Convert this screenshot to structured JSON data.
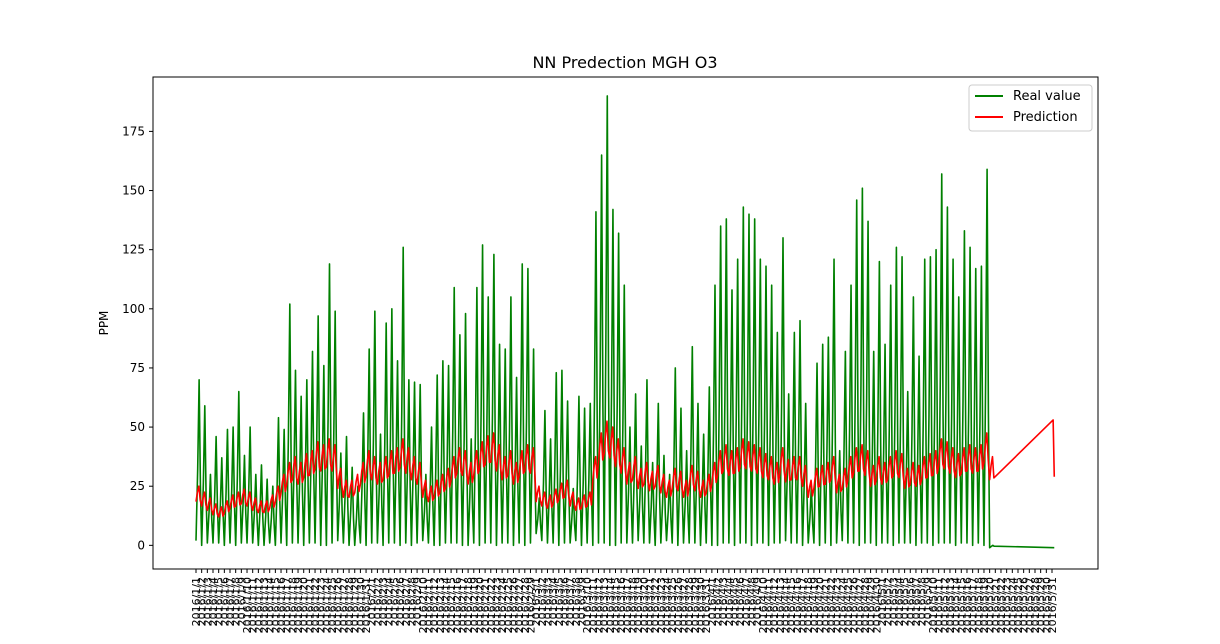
{
  "chart_data": {
    "type": "line",
    "title": "NN Predection MGH O3",
    "xlabel": "",
    "ylabel": "PPM",
    "ylim": [
      -10,
      198
    ],
    "y_ticks": [
      0,
      25,
      50,
      75,
      100,
      125,
      150,
      175
    ],
    "grid": false,
    "legend_position": "top-right",
    "x_tick_labels": [
      "2016/1/1",
      "2016/1/2",
      "2016/1/3",
      "2016/1/4",
      "2016/1/5",
      "2016/1/6",
      "2016/1/7",
      "2016/1/8",
      "2016/1/9",
      "2016/1/10",
      "2016/1/11",
      "2016/1/12",
      "2016/1/13",
      "2016/1/14",
      "2016/1/15",
      "2016/1/16",
      "2016/1/17",
      "2016/1/18",
      "2016/1/19",
      "2016/1/20",
      "2016/1/21",
      "2016/1/22",
      "2016/1/23",
      "2016/1/24",
      "2016/1/25",
      "2016/1/26",
      "2016/1/27",
      "2016/1/28",
      "2016/1/29",
      "2016/1/30",
      "2016/1/31",
      "2016/2/1",
      "2016/2/2",
      "2016/2/3",
      "2016/2/4",
      "2016/2/5",
      "2016/2/6",
      "2016/2/7",
      "2016/2/8",
      "2016/2/9",
      "2016/2/10",
      "2016/2/11",
      "2016/2/12",
      "2016/2/13",
      "2016/2/14",
      "2016/2/15",
      "2016/2/16",
      "2016/2/17",
      "2016/2/18",
      "2016/2/19",
      "2016/2/20",
      "2016/2/21",
      "2016/2/22",
      "2016/2/23",
      "2016/2/24",
      "2016/2/25",
      "2016/2/26",
      "2016/2/27",
      "2016/2/28",
      "2016/2/29",
      "2016/3/1",
      "2016/3/2",
      "2016/3/3",
      "2016/3/4",
      "2016/3/5",
      "2016/3/6",
      "2016/3/7",
      "2016/3/8",
      "2016/3/9",
      "2016/3/10",
      "2016/3/11",
      "2016/3/12",
      "2016/3/13",
      "2016/3/14",
      "2016/3/15",
      "2016/3/16",
      "2016/3/17",
      "2016/3/18",
      "2016/3/19",
      "2016/3/20",
      "2016/3/21",
      "2016/3/22",
      "2016/3/23",
      "2016/3/24",
      "2016/3/25",
      "2016/3/26",
      "2016/3/27",
      "2016/3/28",
      "2016/3/29",
      "2016/3/30",
      "2016/3/31",
      "2016/4/1",
      "2016/4/2",
      "2016/4/3",
      "2016/4/4",
      "2016/4/5",
      "2016/4/6",
      "2016/4/7",
      "2016/4/8",
      "2016/4/9",
      "2016/4/10",
      "2016/4/11",
      "2016/4/12",
      "2016/4/13",
      "2016/4/14",
      "2016/4/15",
      "2016/4/16",
      "2016/4/17",
      "2016/4/18",
      "2016/4/19",
      "2016/4/20",
      "2016/4/21",
      "2016/4/22",
      "2016/4/23",
      "2016/4/24",
      "2016/4/25",
      "2016/4/26",
      "2016/4/27",
      "2016/4/28",
      "2016/4/29",
      "2016/4/30",
      "2016/5/1",
      "2016/5/2",
      "2016/5/3",
      "2016/5/4",
      "2016/5/5",
      "2016/5/6",
      "2016/5/7",
      "2016/5/8",
      "2016/5/9",
      "2016/5/10",
      "2016/5/11",
      "2016/5/12",
      "2016/5/13",
      "2016/5/14",
      "2016/5/15",
      "2016/5/16",
      "2016/5/17",
      "2016/5/18",
      "2016/5/19",
      "2016/5/20",
      "2016/5/21",
      "2016/5/22",
      "2016/5/23",
      "2016/5/24",
      "2016/5/25",
      "2016/5/26",
      "2016/5/27",
      "2016/5/28",
      "2016/5/29",
      "2016/5/30",
      "2016/5/31"
    ],
    "daily_peaks_real": [
      70,
      59,
      30,
      46,
      37,
      49,
      50,
      65,
      38,
      50,
      30,
      34,
      28,
      25,
      54,
      49,
      102,
      74,
      63,
      70,
      82,
      97,
      76,
      119,
      99,
      39,
      46,
      33,
      25,
      56,
      83,
      99,
      47,
      94,
      100,
      78,
      126,
      70,
      69,
      68,
      30,
      50,
      72,
      78,
      76,
      109,
      89,
      98,
      45,
      109,
      127,
      105,
      123,
      85,
      83,
      105,
      71,
      119,
      117,
      83,
      20,
      57,
      45,
      73,
      74,
      61,
      24,
      63,
      58,
      60,
      141,
      165,
      190,
      142,
      132,
      110,
      50,
      64,
      42,
      70,
      35,
      60,
      38,
      30,
      75,
      58,
      40,
      84,
      60,
      47,
      67,
      110,
      135,
      138,
      108,
      121,
      143,
      140,
      138,
      121,
      118,
      110,
      90,
      130,
      64,
      90,
      95,
      60,
      25,
      77,
      85,
      88,
      121,
      40,
      82,
      110,
      146,
      151,
      137,
      82,
      120,
      85,
      110,
      126,
      122,
      65,
      105,
      80,
      121,
      122,
      125,
      157,
      143,
      121,
      105,
      133,
      126,
      117,
      118,
      159,
      0
    ],
    "daily_troughs_real": [
      2,
      0,
      1,
      1,
      1,
      0,
      1,
      0,
      1,
      1,
      1,
      0,
      0,
      1,
      0,
      1,
      0,
      1,
      1,
      0,
      1,
      1,
      0,
      0,
      1,
      2,
      1,
      0,
      0,
      1,
      0,
      1,
      1,
      0,
      1,
      1,
      0,
      1,
      0,
      1,
      2,
      1,
      0,
      0,
      1,
      1,
      1,
      0,
      0,
      1,
      0,
      1,
      1,
      0,
      1,
      1,
      0,
      1,
      0,
      1,
      5,
      2,
      1,
      1,
      0,
      1,
      1,
      2,
      0,
      1,
      0,
      1,
      1,
      0,
      0,
      1,
      1,
      1,
      2,
      1,
      1,
      0,
      1,
      2,
      1,
      0,
      1,
      1,
      1,
      0,
      1,
      0,
      0,
      1,
      1,
      0,
      1,
      1,
      0,
      1,
      1,
      0,
      1,
      1,
      2,
      1,
      1,
      0,
      1,
      1,
      0,
      1,
      0,
      1,
      2,
      1,
      1,
      0,
      1,
      1,
      0,
      1,
      1,
      0,
      1,
      1,
      1,
      0,
      1,
      1,
      0,
      1,
      1,
      1,
      0,
      1,
      1,
      0,
      1,
      0,
      -1
    ],
    "daily_levels_prediction": [
      20,
      18,
      16,
      14,
      13,
      15,
      17,
      18,
      19,
      18,
      16,
      15,
      15,
      17,
      20,
      24,
      28,
      30,
      28,
      31,
      32,
      35,
      34,
      36,
      34,
      26,
      22,
      22,
      24,
      28,
      32,
      30,
      28,
      30,
      32,
      33,
      36,
      33,
      30,
      28,
      22,
      20,
      22,
      24,
      26,
      30,
      33,
      32,
      28,
      32,
      35,
      37,
      38,
      34,
      30,
      32,
      28,
      32,
      34,
      33,
      20,
      18,
      17,
      19,
      21,
      22,
      18,
      16,
      17,
      18,
      30,
      38,
      42,
      40,
      36,
      33,
      28,
      30,
      26,
      28,
      25,
      27,
      24,
      22,
      26,
      25,
      22,
      27,
      25,
      22,
      24,
      28,
      32,
      34,
      32,
      33,
      36,
      35,
      34,
      33,
      31,
      30,
      28,
      33,
      29,
      30,
      30,
      27,
      22,
      26,
      27,
      28,
      30,
      24,
      26,
      30,
      33,
      34,
      32,
      27,
      30,
      28,
      30,
      32,
      31,
      26,
      28,
      27,
      30,
      31,
      32,
      36,
      35,
      33,
      31,
      33,
      34,
      33,
      34,
      38,
      30
    ],
    "series": [
      {
        "name": "Real value",
        "color": "#008000"
      },
      {
        "name": "Prediction",
        "color": "#ff0000"
      }
    ]
  }
}
